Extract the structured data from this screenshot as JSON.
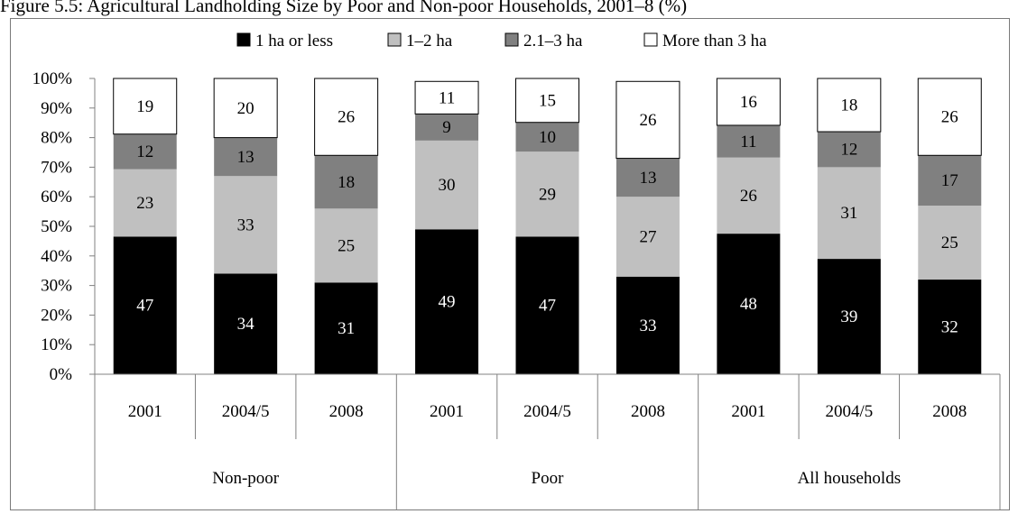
{
  "figure_caption": "Figure 5.5: Agricultural Landholding Size by Poor and Non-poor Households, 2001–8 (%)",
  "chart_data": {
    "type": "bar",
    "stacked": true,
    "title": "",
    "xlabel": "",
    "ylabel": "",
    "ylim": [
      0,
      100
    ],
    "y_ticks": [
      "0%",
      "10%",
      "20%",
      "30%",
      "40%",
      "50%",
      "60%",
      "70%",
      "80%",
      "90%",
      "100%"
    ],
    "legend_position": "top",
    "grid": false,
    "groups": [
      {
        "label": "Non-poor",
        "categories": [
          "2001",
          "2004/5",
          "2008"
        ]
      },
      {
        "label": "Poor",
        "categories": [
          "2001",
          "2004/5",
          "2008"
        ]
      },
      {
        "label": "All households",
        "categories": [
          "2001",
          "2004/5",
          "2008"
        ]
      }
    ],
    "categories": [
      "2001",
      "2004/5",
      "2008",
      "2001",
      "2004/5",
      "2008",
      "2001",
      "2004/5",
      "2008"
    ],
    "series": [
      {
        "name": "1 ha or less",
        "color": "#000000",
        "label_color": "#ffffff",
        "values": [
          47,
          34,
          31,
          49,
          47,
          33,
          48,
          39,
          32
        ]
      },
      {
        "name": "1–2 ha",
        "color": "#c0c0c0",
        "label_color": "#000000",
        "values": [
          23,
          33,
          25,
          30,
          29,
          27,
          26,
          31,
          25
        ]
      },
      {
        "name": "2.1–3 ha",
        "color": "#808080",
        "label_color": "#000000",
        "values": [
          12,
          13,
          18,
          9,
          10,
          13,
          11,
          12,
          17
        ]
      },
      {
        "name": "More than 3 ha",
        "color": "#ffffff",
        "label_color": "#000000",
        "values": [
          19,
          20,
          26,
          11,
          15,
          26,
          16,
          18,
          26
        ]
      }
    ]
  }
}
